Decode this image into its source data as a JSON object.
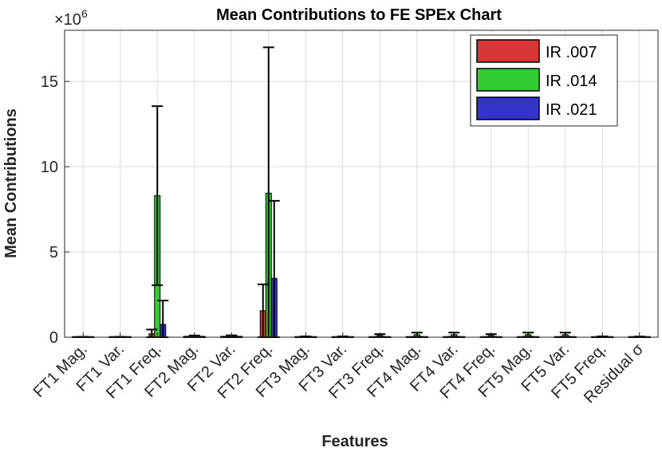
{
  "chart_data": {
    "type": "bar",
    "title": "Mean Contributions to FE SPEx Chart",
    "xlabel": "Features",
    "ylabel": "Mean Contributions",
    "y_multiplier_base": "×10",
    "y_multiplier_exp": "6",
    "y_scale": 1000000,
    "ylim": [
      0,
      18000000
    ],
    "yticks": [
      0,
      5000000,
      10000000,
      15000000
    ],
    "ytick_labels": [
      "0",
      "5",
      "10",
      "15"
    ],
    "grid": true,
    "legend_position": "top-right",
    "categories": [
      "FT1 Mag.",
      "FT1 Var.",
      "FT1 Freq.",
      "FT2 Mag.",
      "FT2 Var.",
      "FT2 Freq.",
      "FT3 Mag.",
      "FT3 Var.",
      "FT3 Freq.",
      "FT4 Mag.",
      "FT4 Var.",
      "FT4 Freq.",
      "FT5 Mag.",
      "FT5 Var.",
      "FT5 Freq.",
      "Residual σ"
    ],
    "series": [
      {
        "name": "IR .007",
        "color": "#d93636",
        "values": [
          5000,
          5000,
          200000,
          10000,
          10000,
          1550000,
          5000,
          5000,
          5000,
          5000,
          5000,
          5000,
          5000,
          5000,
          5000,
          5000
        ],
        "errors": [
          10000,
          10000,
          250000,
          20000,
          20000,
          1550000,
          10000,
          10000,
          10000,
          10000,
          10000,
          10000,
          10000,
          10000,
          10000,
          10000
        ]
      },
      {
        "name": "IR .014",
        "color": "#33cc33",
        "values": [
          5000,
          5000,
          8300000,
          40000,
          40000,
          8450000,
          20000,
          20000,
          100000,
          150000,
          150000,
          100000,
          150000,
          150000,
          20000,
          20000
        ],
        "errors": [
          20000,
          20000,
          5250000,
          60000,
          70000,
          8550000,
          30000,
          30000,
          80000,
          120000,
          120000,
          80000,
          120000,
          120000,
          30000,
          20000
        ]
      },
      {
        "name": "IR .021",
        "color": "#3333cc",
        "values": [
          5000,
          5000,
          750000,
          10000,
          10000,
          3450000,
          5000,
          5000,
          5000,
          5000,
          5000,
          5000,
          5000,
          5000,
          5000,
          5000
        ],
        "errors": [
          10000,
          10000,
          1400000,
          20000,
          20000,
          4550000,
          10000,
          10000,
          10000,
          10000,
          10000,
          10000,
          10000,
          10000,
          10000,
          10000
        ]
      }
    ]
  }
}
